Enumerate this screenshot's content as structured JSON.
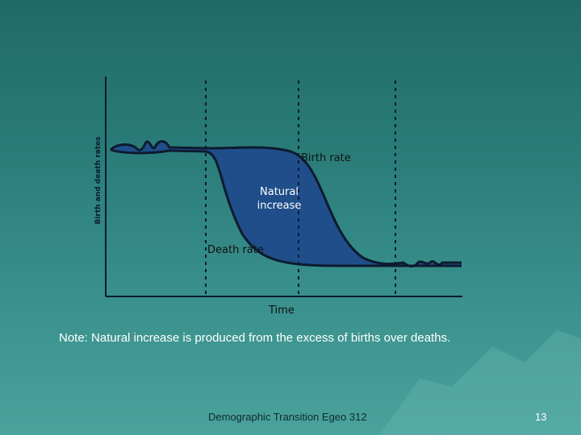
{
  "slide": {
    "diagram": {
      "y_axis_label": "Birth and death rates",
      "x_axis_label": "Time",
      "birth_rate_label": "Birth rate",
      "natural_increase_label": "Natural\nincrease",
      "death_rate_label": "Death rate",
      "colors": {
        "fill": "#1f4e8a",
        "curve": "#0d1b2f",
        "axis": "#0d1b2f",
        "divider": "#0d1b2f"
      }
    },
    "note": "Note: Natural increase is produced from the excess of births over deaths.",
    "footer": {
      "title": "Demographic Transition Egeo 312",
      "page_number": "13"
    }
  }
}
